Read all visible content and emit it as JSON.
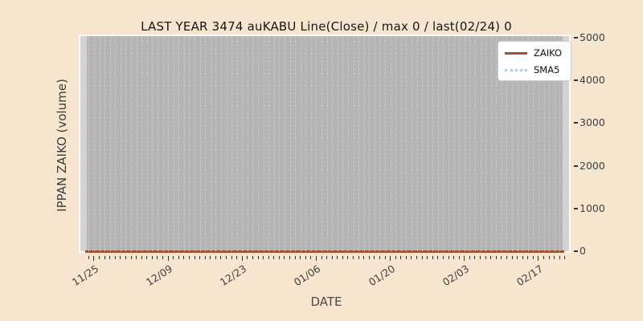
{
  "title": "LAST YEAR 3474 auKABU Line(Close) / max 0 / last(02/24) 0",
  "axes": {
    "x_label": "DATE",
    "y_label": "IPPAN ZAIKO (volume)"
  },
  "legend": {
    "items": [
      {
        "label": "ZAIKO",
        "color": "#a0522d",
        "style": "solid"
      },
      {
        "label": "SMA5",
        "color": "#a9cce3",
        "style": "dotted"
      }
    ]
  },
  "chart_data": {
    "type": "line",
    "title": "LAST YEAR 3474 auKABU Line(Close) / max 0 / last(02/24) 0",
    "xlabel": "DATE",
    "ylabel": "IPPAN ZAIKO (volume)",
    "x_ticks": [
      "11/25",
      "12/09",
      "12/23",
      "01/06",
      "01/20",
      "02/03",
      "02/17"
    ],
    "y_ticks": [
      0,
      1000,
      2000,
      3000,
      4000,
      5000
    ],
    "ylim": [
      0,
      5000
    ],
    "x_range": [
      "11/25",
      "02/24"
    ],
    "grid": "vertical-daily-dashed",
    "legend_position": "upper right",
    "series": [
      {
        "name": "ZAIKO",
        "color": "#a0522d",
        "style": "solid",
        "values_constant": 0,
        "values_at_ticks": [
          0,
          0,
          0,
          0,
          0,
          0,
          0
        ]
      },
      {
        "name": "SMA5",
        "color": "#a9cce3",
        "style": "dotted",
        "values_constant": 0,
        "values_at_ticks": [
          0,
          0,
          0,
          0,
          0,
          0,
          0
        ]
      }
    ],
    "annotations": {
      "max": 0,
      "last_date": "02/24",
      "last_value": 0
    }
  },
  "colors": {
    "background": "#f7e6cf",
    "plot_bg": "#b5b5b5",
    "edge_strip": "#d3d3d3",
    "grid": "#cacaca",
    "spine": "#fbfbfb",
    "tick_text": "#3f3f3f",
    "title_text": "#151515",
    "zaiko": "#a0522d",
    "sma5": "#a9cce3"
  }
}
